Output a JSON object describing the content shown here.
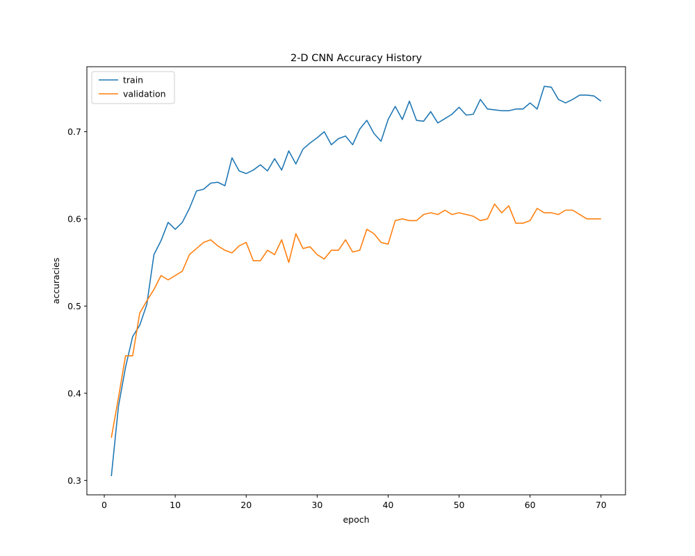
{
  "chart_data": {
    "type": "line",
    "title": "2-D CNN Accuracy History",
    "xlabel": "epoch",
    "ylabel": "accuracies",
    "xlim": [
      -2.45,
      73.45
    ],
    "ylim": [
      0.2835,
      0.7745
    ],
    "xticks": [
      0,
      10,
      20,
      30,
      40,
      50,
      60,
      70
    ],
    "yticks": [
      0.3,
      0.4,
      0.5,
      0.6,
      0.7
    ],
    "grid": false,
    "legend": "upper-left",
    "x": [
      1,
      2,
      3,
      4,
      5,
      6,
      7,
      8,
      9,
      10,
      11,
      12,
      13,
      14,
      15,
      16,
      17,
      18,
      19,
      20,
      21,
      22,
      23,
      24,
      25,
      26,
      27,
      28,
      29,
      30,
      31,
      32,
      33,
      34,
      35,
      36,
      37,
      38,
      39,
      40,
      41,
      42,
      43,
      44,
      45,
      46,
      47,
      48,
      49,
      50,
      51,
      52,
      53,
      54,
      55,
      56,
      57,
      58,
      59,
      60,
      61,
      62,
      63,
      64,
      65,
      66,
      67,
      68,
      69,
      70
    ],
    "series": [
      {
        "name": "train",
        "color": "#1f77b4",
        "values": [
          0.305,
          0.385,
          0.43,
          0.465,
          0.478,
          0.502,
          0.559,
          0.575,
          0.596,
          0.588,
          0.596,
          0.612,
          0.632,
          0.634,
          0.641,
          0.642,
          0.638,
          0.67,
          0.655,
          0.652,
          0.656,
          0.662,
          0.655,
          0.669,
          0.656,
          0.678,
          0.663,
          0.68,
          0.687,
          0.693,
          0.7,
          0.685,
          0.692,
          0.695,
          0.685,
          0.703,
          0.713,
          0.698,
          0.689,
          0.714,
          0.729,
          0.714,
          0.735,
          0.713,
          0.712,
          0.723,
          0.71,
          0.715,
          0.72,
          0.728,
          0.719,
          0.72,
          0.737,
          0.726,
          0.725,
          0.724,
          0.724,
          0.726,
          0.726,
          0.733,
          0.726,
          0.752,
          0.751,
          0.737,
          0.733,
          0.737,
          0.742,
          0.742,
          0.741,
          0.735
        ]
      },
      {
        "name": "validation",
        "color": "#ff7f0e",
        "values": [
          0.349,
          0.395,
          0.443,
          0.443,
          0.492,
          0.506,
          0.519,
          0.535,
          0.53,
          0.535,
          0.54,
          0.559,
          0.566,
          0.573,
          0.576,
          0.569,
          0.564,
          0.561,
          0.569,
          0.573,
          0.552,
          0.552,
          0.564,
          0.559,
          0.576,
          0.55,
          0.583,
          0.566,
          0.568,
          0.559,
          0.554,
          0.564,
          0.564,
          0.576,
          0.562,
          0.564,
          0.588,
          0.583,
          0.573,
          0.571,
          0.598,
          0.6,
          0.598,
          0.598,
          0.605,
          0.607,
          0.605,
          0.61,
          0.605,
          0.607,
          0.605,
          0.603,
          0.598,
          0.6,
          0.617,
          0.607,
          0.615,
          0.595,
          0.595,
          0.598,
          0.612,
          0.607,
          0.607,
          0.605,
          0.61,
          0.61,
          0.605,
          0.6,
          0.6,
          0.6
        ]
      }
    ]
  }
}
